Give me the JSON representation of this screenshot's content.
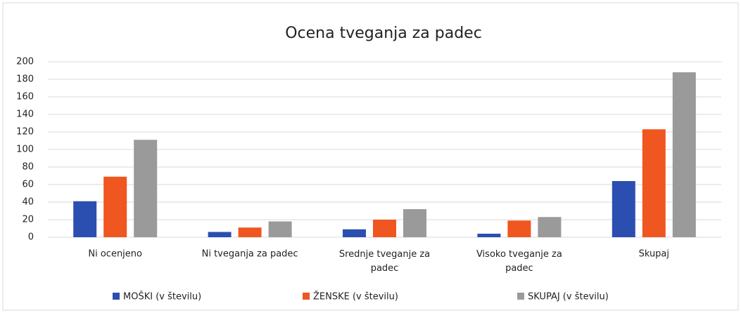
{
  "chart_data": {
    "type": "bar",
    "title": "Ocena tveganja za padec",
    "categories": [
      "Ni ocenjeno",
      "Ni tveganja za padec",
      "Srednje tveganje za padec",
      "Visoko tveganje za padec",
      "Skupaj"
    ],
    "series": [
      {
        "name": "MOŠKI (v številu)",
        "color": "#2a4fb0",
        "values": [
          41,
          6,
          9,
          4,
          64
        ]
      },
      {
        "name": "ŽENSKE (v številu)",
        "color": "#f0561f",
        "values": [
          69,
          11,
          20,
          19,
          123
        ]
      },
      {
        "name": "SKUPAJ (v številu)",
        "color": "#9a9a9a",
        "values": [
          111,
          18,
          32,
          23,
          188
        ]
      }
    ],
    "ylim": [
      0,
      200
    ],
    "yticks": [
      0,
      20,
      40,
      60,
      80,
      100,
      120,
      140,
      160,
      180,
      200
    ],
    "grid": true,
    "legend": "bottom"
  }
}
